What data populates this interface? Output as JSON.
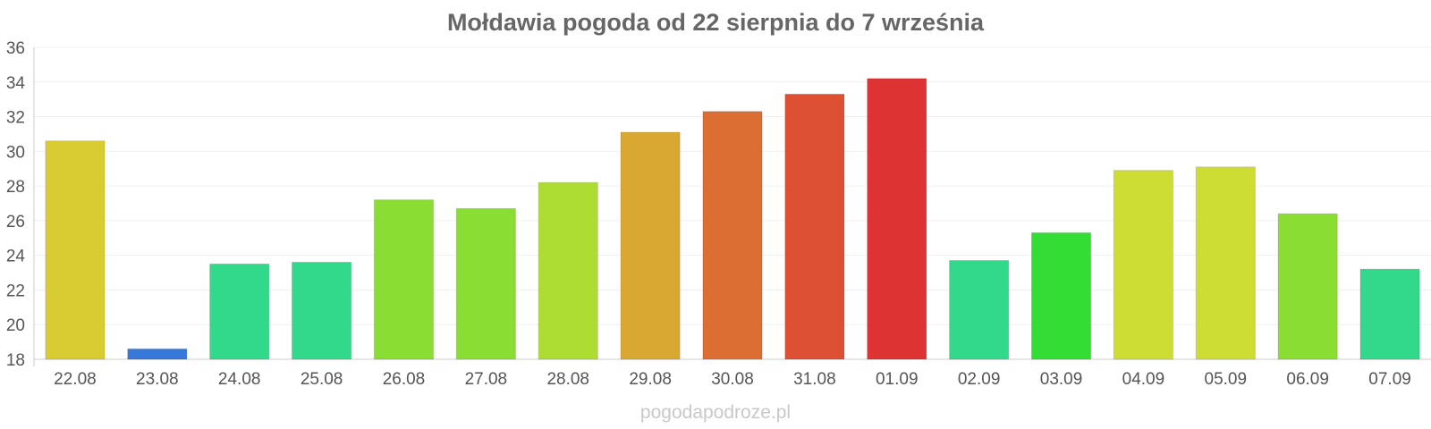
{
  "chart_data": {
    "type": "bar",
    "title": "Mołdawia pogoda od 22 sierpnia do 7 września",
    "xlabel": "",
    "ylabel": "",
    "categories": [
      "22.08",
      "23.08",
      "24.08",
      "25.08",
      "26.08",
      "27.08",
      "28.08",
      "29.08",
      "30.08",
      "31.08",
      "01.09",
      "02.09",
      "03.09",
      "04.09",
      "05.09",
      "06.09",
      "07.09"
    ],
    "values": [
      30.6,
      18.6,
      23.5,
      23.6,
      27.2,
      26.7,
      28.2,
      31.1,
      32.3,
      33.3,
      34.2,
      23.7,
      25.3,
      28.9,
      29.1,
      26.4,
      23.2
    ],
    "colors": [
      "#d9cc33",
      "#3878d8",
      "#33d98a",
      "#33d98a",
      "#8add33",
      "#8add33",
      "#addd33",
      "#d9a833",
      "#dd6e33",
      "#dd5033",
      "#dd3333",
      "#33d98a",
      "#33dd33",
      "#cddd33",
      "#cddd33",
      "#8add33",
      "#33d98a"
    ],
    "ylim": [
      18,
      36
    ],
    "yticks": [
      18,
      20,
      22,
      24,
      26,
      28,
      30,
      32,
      34,
      36
    ],
    "grid": true,
    "legend": "none"
  },
  "watermark": "pogodapodroze.pl"
}
